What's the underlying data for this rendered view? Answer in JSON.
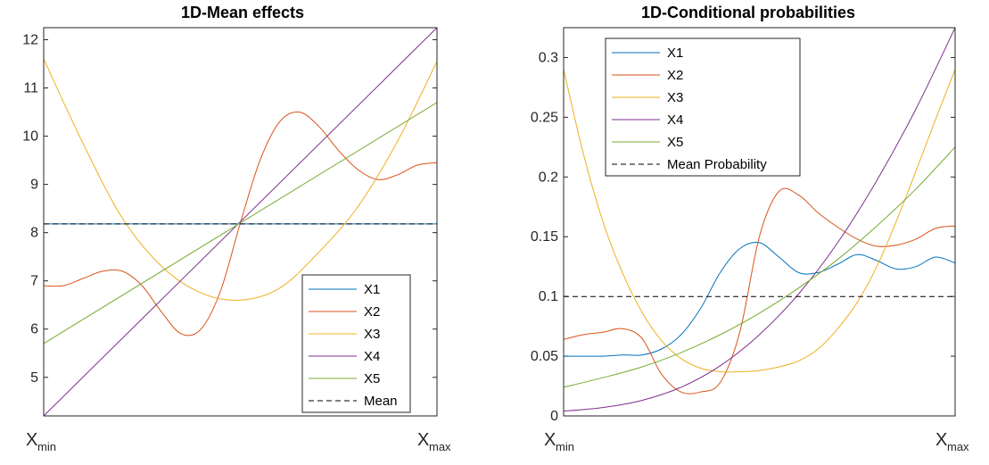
{
  "chart_data": [
    {
      "type": "line",
      "title": "1D-Mean effects",
      "xlabel_min": "X",
      "xlabel_min_sub": "min",
      "xlabel_max": "X",
      "xlabel_max_sub": "max",
      "xlim": [
        0,
        1
      ],
      "ylim": [
        4.2,
        12.25
      ],
      "yticks": [
        5,
        6,
        7,
        8,
        9,
        10,
        11,
        12
      ],
      "ytick_labels": [
        "5",
        "6",
        "7",
        "8",
        "9",
        "10",
        "11",
        "12"
      ],
      "legend_position": "bottom-right",
      "series": [
        {
          "name": "X1",
          "color": "#0072BD",
          "dashed": false,
          "x": [
            0,
            1
          ],
          "y": [
            8.18,
            8.18
          ]
        },
        {
          "name": "X2",
          "color": "#D95319",
          "dashed": false,
          "x": [
            0,
            0.05,
            0.1,
            0.15,
            0.2,
            0.25,
            0.3,
            0.35,
            0.4,
            0.45,
            0.5,
            0.55,
            0.6,
            0.65,
            0.7,
            0.75,
            0.8,
            0.85,
            0.9,
            0.95,
            1.0
          ],
          "y": [
            6.9,
            6.9,
            7.05,
            7.2,
            7.2,
            6.9,
            6.35,
            5.9,
            6.0,
            6.8,
            8.2,
            9.5,
            10.3,
            10.5,
            10.2,
            9.7,
            9.3,
            9.1,
            9.2,
            9.4,
            9.45
          ]
        },
        {
          "name": "X3",
          "color": "#EDB120",
          "dashed": false,
          "x": [
            0,
            0.1,
            0.2,
            0.3,
            0.4,
            0.5,
            0.6,
            0.7,
            0.8,
            0.9,
            1.0
          ],
          "y": [
            11.6,
            9.85,
            8.3,
            7.3,
            6.75,
            6.6,
            6.85,
            7.6,
            8.55,
            9.9,
            11.55
          ]
        },
        {
          "name": "X4",
          "color": "#7E2F8E",
          "dashed": false,
          "x": [
            0,
            1
          ],
          "y": [
            4.2,
            12.25
          ]
        },
        {
          "name": "X5",
          "color": "#77AC30",
          "dashed": false,
          "x": [
            0,
            1
          ],
          "y": [
            5.7,
            10.7
          ]
        },
        {
          "name": "Mean",
          "color": "#000000",
          "dashed": true,
          "x": [
            0,
            1
          ],
          "y": [
            8.18,
            8.18
          ]
        }
      ]
    },
    {
      "type": "line",
      "title": "1D-Conditional probabilities",
      "xlabel_min": "X",
      "xlabel_min_sub": "min",
      "xlabel_max": "X",
      "xlabel_max_sub": "max",
      "xlim": [
        0,
        1
      ],
      "ylim": [
        0,
        0.325
      ],
      "yticks": [
        0,
        0.05,
        0.1,
        0.15,
        0.2,
        0.25,
        0.3
      ],
      "ytick_labels": [
        "0",
        "0.05",
        "0.1",
        "0.15",
        "0.2",
        "0.25",
        "0.3"
      ],
      "legend_position": "top-left",
      "series": [
        {
          "name": "X1",
          "color": "#0072BD",
          "dashed": false,
          "x": [
            0,
            0.05,
            0.1,
            0.15,
            0.2,
            0.25,
            0.3,
            0.35,
            0.4,
            0.45,
            0.5,
            0.55,
            0.6,
            0.65,
            0.7,
            0.75,
            0.8,
            0.85,
            0.9,
            0.95,
            1.0
          ],
          "y": [
            0.05,
            0.05,
            0.05,
            0.051,
            0.051,
            0.056,
            0.068,
            0.09,
            0.12,
            0.14,
            0.145,
            0.133,
            0.12,
            0.12,
            0.127,
            0.135,
            0.13,
            0.123,
            0.125,
            0.133,
            0.128
          ]
        },
        {
          "name": "X2",
          "color": "#D95319",
          "dashed": false,
          "x": [
            0,
            0.05,
            0.1,
            0.15,
            0.2,
            0.25,
            0.3,
            0.35,
            0.4,
            0.45,
            0.5,
            0.55,
            0.6,
            0.65,
            0.7,
            0.75,
            0.8,
            0.85,
            0.9,
            0.95,
            1.0
          ],
          "y": [
            0.064,
            0.068,
            0.07,
            0.073,
            0.065,
            0.035,
            0.02,
            0.02,
            0.028,
            0.07,
            0.15,
            0.188,
            0.185,
            0.17,
            0.158,
            0.148,
            0.142,
            0.143,
            0.148,
            0.157,
            0.159
          ]
        },
        {
          "name": "X3",
          "color": "#EDB120",
          "dashed": false,
          "x": [
            0,
            0.05,
            0.1,
            0.15,
            0.2,
            0.25,
            0.3,
            0.35,
            0.4,
            0.45,
            0.5,
            0.55,
            0.6,
            0.65,
            0.7,
            0.75,
            0.8,
            0.85,
            0.9,
            0.95,
            1.0
          ],
          "y": [
            0.29,
            0.22,
            0.163,
            0.12,
            0.087,
            0.063,
            0.048,
            0.04,
            0.037,
            0.037,
            0.038,
            0.041,
            0.046,
            0.056,
            0.073,
            0.095,
            0.125,
            0.163,
            0.205,
            0.248,
            0.29
          ]
        },
        {
          "name": "X4",
          "color": "#7E2F8E",
          "dashed": false,
          "x": [
            0,
            0.1,
            0.2,
            0.3,
            0.4,
            0.5,
            0.6,
            0.7,
            0.8,
            0.9,
            1.0
          ],
          "y": [
            0.004,
            0.007,
            0.013,
            0.024,
            0.042,
            0.068,
            0.102,
            0.145,
            0.197,
            0.257,
            0.325
          ]
        },
        {
          "name": "X5",
          "color": "#77AC30",
          "dashed": false,
          "x": [
            0,
            0.1,
            0.2,
            0.3,
            0.4,
            0.5,
            0.6,
            0.7,
            0.8,
            0.9,
            1.0
          ],
          "y": [
            0.024,
            0.032,
            0.041,
            0.053,
            0.068,
            0.086,
            0.107,
            0.131,
            0.159,
            0.19,
            0.225
          ]
        },
        {
          "name": "Mean Probability",
          "color": "#000000",
          "dashed": true,
          "x": [
            0,
            1
          ],
          "y": [
            0.1,
            0.1
          ]
        }
      ]
    }
  ]
}
